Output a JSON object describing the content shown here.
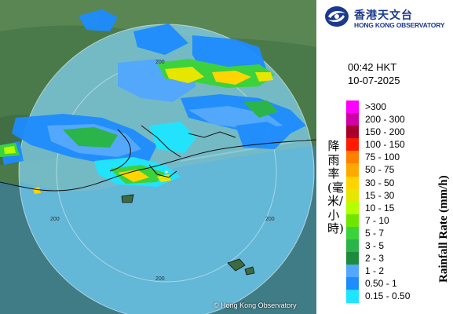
{
  "header": {
    "org_name_cn": "香港天文台",
    "org_name_en": "HONG KONG OBSERVATORY"
  },
  "timestamp": {
    "time": "00:42 HKT",
    "date": "10-07-2025"
  },
  "legend": {
    "unit_en": "Rainfall Rate (mm/h)",
    "unit_cn": "降雨率(毫米/小時)",
    "items": [
      {
        "label": ">300",
        "color": "#ff00ff"
      },
      {
        "label": "200 - 300",
        "color": "#d000a8"
      },
      {
        "label": "150 - 200",
        "color": "#a8002a"
      },
      {
        "label": "100 - 150",
        "color": "#ff1a00"
      },
      {
        "label": "75 - 100",
        "color": "#ff8000"
      },
      {
        "label": "50 - 75",
        "color": "#ffa800"
      },
      {
        "label": "30 - 50",
        "color": "#ffd400"
      },
      {
        "label": "15 - 30",
        "color": "#e6e600"
      },
      {
        "label": "10 - 15",
        "color": "#b4ff00"
      },
      {
        "label": "7 - 10",
        "color": "#6ee600"
      },
      {
        "label": "5 - 7",
        "color": "#3cd23c"
      },
      {
        "label": "3 - 5",
        "color": "#2ab44a"
      },
      {
        "label": "2 - 3",
        "color": "#1e8a3c"
      },
      {
        "label": "1 - 2",
        "color": "#52a8ff"
      },
      {
        "label": "0.50 - 1",
        "color": "#1e8cff"
      },
      {
        "label": "0.15 - 0.50",
        "color": "#1ee6ff"
      }
    ]
  },
  "map": {
    "range_labels": [
      "200",
      "200",
      "200",
      "200"
    ],
    "copyright": "© Hong Kong Observatory",
    "colors": {
      "land": "#4a7a4a",
      "sea": "#3f7c86",
      "radar_coverage": "#7ec8e0",
      "coastline": "#101010"
    }
  }
}
